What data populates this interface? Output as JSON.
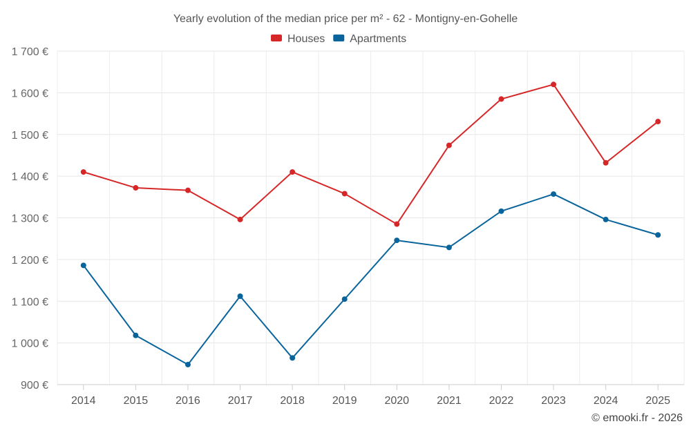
{
  "chart_data": {
    "type": "line",
    "title": "Yearly evolution of the median price per m² - 62 - Montigny-en-Gohelle",
    "xlabel": "",
    "ylabel": "",
    "categories": [
      "2014",
      "2015",
      "2016",
      "2017",
      "2018",
      "2019",
      "2020",
      "2021",
      "2022",
      "2023",
      "2024",
      "2025"
    ],
    "series": [
      {
        "name": "Houses",
        "color": "#d62728",
        "values": [
          1410,
          1372,
          1366,
          1296,
          1410,
          1358,
          1285,
          1474,
          1585,
          1620,
          1432,
          1531
        ]
      },
      {
        "name": "Apartments",
        "color": "#08649b",
        "values": [
          1186,
          1018,
          948,
          1112,
          964,
          1105,
          1246,
          1229,
          1316,
          1357,
          1296,
          1259
        ]
      }
    ],
    "ylim": [
      900,
      1700
    ],
    "yticks": [
      900,
      1000,
      1100,
      1200,
      1300,
      1400,
      1500,
      1600,
      1700
    ],
    "ytick_labels": [
      "900 €",
      "1 000 €",
      "1 100 €",
      "1 200 €",
      "1 300 €",
      "1 400 €",
      "1 500 €",
      "1 600 €",
      "1 700 €"
    ],
    "grid": true,
    "legend_position": "top-center"
  },
  "footer": {
    "credit": "© emooki.fr - 2026"
  }
}
